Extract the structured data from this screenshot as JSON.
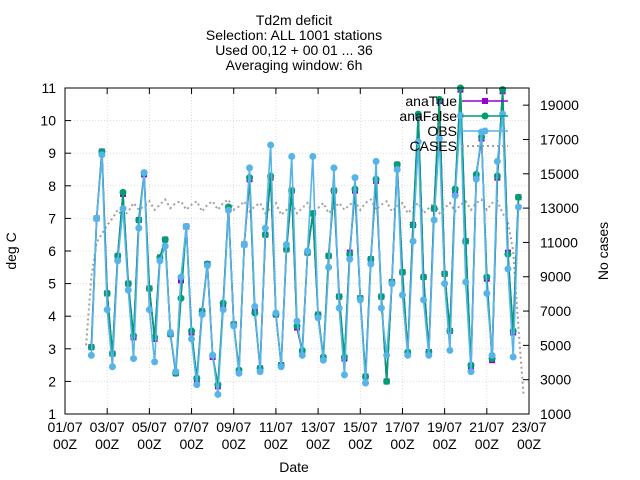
{
  "chart_data": {
    "type": "line",
    "title_lines": [
      "Td2m deficit",
      "Selection: ALL   1001 stations",
      "Used 00,12 + 00 01 ... 36",
      "Averaging window:  6h"
    ],
    "xlabel": "Date",
    "ylabel": "deg C",
    "y2label": "No cases",
    "xlim": [
      "2021-07-01 00Z",
      "2021-07-23 00Z"
    ],
    "x_ticks": [
      {
        "top": "01/07",
        "bottom": "00Z"
      },
      {
        "top": "03/07",
        "bottom": "00Z"
      },
      {
        "top": "05/07",
        "bottom": "00Z"
      },
      {
        "top": "07/07",
        "bottom": "00Z"
      },
      {
        "top": "09/07",
        "bottom": "00Z"
      },
      {
        "top": "11/07",
        "bottom": "00Z"
      },
      {
        "top": "13/07",
        "bottom": "00Z"
      },
      {
        "top": "15/07",
        "bottom": "00Z"
      },
      {
        "top": "17/07",
        "bottom": "00Z"
      },
      {
        "top": "19/07",
        "bottom": "00Z"
      },
      {
        "top": "21/07",
        "bottom": "00Z"
      },
      {
        "top": "23/07",
        "bottom": "00Z"
      }
    ],
    "ylim": [
      1,
      11
    ],
    "y_ticks": [
      "1",
      "2",
      "3",
      "4",
      "5",
      "6",
      "7",
      "8",
      "9",
      "10",
      "11"
    ],
    "y2lim": [
      1000,
      20000
    ],
    "y2_ticks": [
      "1000",
      "3000",
      "5000",
      "7000",
      "9000",
      "11000",
      "13000",
      "15000",
      "17000",
      "19000"
    ],
    "grid": true,
    "legend_position": "top-right",
    "x_days_since_start": [
      1.25,
      1.5,
      1.75,
      2.0,
      2.25,
      2.5,
      2.75,
      3.0,
      3.25,
      3.5,
      3.75,
      4.0,
      4.25,
      4.5,
      4.75,
      5.0,
      5.25,
      5.5,
      5.75,
      6.0,
      6.25,
      6.5,
      6.75,
      7.0,
      7.25,
      7.5,
      7.75,
      8.0,
      8.25,
      8.5,
      8.75,
      9.0,
      9.25,
      9.5,
      9.75,
      10.0,
      10.25,
      10.5,
      10.75,
      11.0,
      11.25,
      11.5,
      11.75,
      12.0,
      12.25,
      12.5,
      12.75,
      13.0,
      13.25,
      13.5,
      13.75,
      14.0,
      14.25,
      14.5,
      14.75,
      15.0,
      15.25,
      15.5,
      15.75,
      16.0,
      16.25,
      16.5,
      16.75,
      17.0,
      17.25,
      17.5,
      17.75,
      18.0,
      18.25,
      18.5,
      18.75,
      19.0,
      19.25,
      19.5,
      19.75,
      20.0,
      20.25,
      20.5,
      20.75,
      21.0,
      21.25,
      21.5
    ],
    "series": [
      {
        "name": "anaTrue",
        "color": "#9400d3",
        "marker": "square",
        "values": [
          3.05,
          7.0,
          9.05,
          4.7,
          2.85,
          5.85,
          7.75,
          5.0,
          3.35,
          6.95,
          8.35,
          4.85,
          3.3,
          5.8,
          6.35,
          3.45,
          2.25,
          5.1,
          6.75,
          3.5,
          2.05,
          4.15,
          5.6,
          2.75,
          1.85,
          4.35,
          7.3,
          3.75,
          2.3,
          6.2,
          8.2,
          4.15,
          2.4,
          6.5,
          8.25,
          4.05,
          2.5,
          6.05,
          7.85,
          3.65,
          2.9,
          5.95,
          7.15,
          4.05,
          2.7,
          5.85,
          7.85,
          4.6,
          2.7,
          5.95,
          7.85,
          4.55,
          2.15,
          5.75,
          8.15,
          4.6,
          2.0,
          5.05,
          8.65,
          5.35,
          2.85,
          6.8,
          10.15,
          5.2,
          2.9,
          7.3,
          10.6,
          5.3,
          3.55,
          7.85,
          10.95,
          6.3,
          2.45,
          8.3,
          9.45,
          5.15,
          2.65,
          8.25,
          10.9,
          5.95,
          3.5,
          7.65
        ]
      },
      {
        "name": "anaFalse",
        "color": "#009e73",
        "marker": "filled-circle",
        "values": [
          3.05,
          7.0,
          9.05,
          4.7,
          2.85,
          5.85,
          7.8,
          5.0,
          3.4,
          6.95,
          8.4,
          4.85,
          3.35,
          5.8,
          6.35,
          3.45,
          2.25,
          4.55,
          6.75,
          3.55,
          2.1,
          4.15,
          5.6,
          2.8,
          1.9,
          4.4,
          7.35,
          3.75,
          2.35,
          6.2,
          8.25,
          4.1,
          2.4,
          6.5,
          8.3,
          4.05,
          2.5,
          6.05,
          7.85,
          3.7,
          2.95,
          5.95,
          7.15,
          4.05,
          2.75,
          5.85,
          7.85,
          4.6,
          2.75,
          5.9,
          7.9,
          4.55,
          2.15,
          5.75,
          8.2,
          4.6,
          2.0,
          5.05,
          8.65,
          5.35,
          2.9,
          6.8,
          10.2,
          5.2,
          2.9,
          7.3,
          10.65,
          5.3,
          3.55,
          7.9,
          11.0,
          6.3,
          2.5,
          8.35,
          9.5,
          5.2,
          2.7,
          8.3,
          10.95,
          5.9,
          3.55,
          7.65
        ]
      },
      {
        "name": "OBS",
        "color": "#56b4e9",
        "marker": "filled-circle",
        "values": [
          2.8,
          7.0,
          8.95,
          4.2,
          2.45,
          5.7,
          7.3,
          4.8,
          2.7,
          6.7,
          8.4,
          4.2,
          2.6,
          5.7,
          6.15,
          3.5,
          2.3,
          5.2,
          6.75,
          3.3,
          1.9,
          4.05,
          5.55,
          2.8,
          1.6,
          4.2,
          7.25,
          3.7,
          2.25,
          6.2,
          8.55,
          4.3,
          2.3,
          6.7,
          9.25,
          4.1,
          2.45,
          6.2,
          8.9,
          3.85,
          2.8,
          6.0,
          8.9,
          3.95,
          2.65,
          5.5,
          8.55,
          4.25,
          2.2,
          5.75,
          8.25,
          4.5,
          1.95,
          5.6,
          8.75,
          4.25,
          2.8,
          5.0,
          8.5,
          4.65,
          2.8,
          6.3,
          9.35,
          4.5,
          2.8,
          6.95,
          9.45,
          5.0,
          2.95,
          7.7,
          10.15,
          5.05,
          2.3,
          8.2,
          9.65,
          4.7,
          2.8,
          8.75,
          10.2,
          5.45,
          2.75,
          7.35
        ]
      }
    ],
    "cases": {
      "name": "CASES",
      "color": "#a0a0a0",
      "style": "dotted",
      "x_days_since_start": [
        1.0,
        1.25,
        1.5,
        1.75,
        2.0,
        2.25,
        2.5,
        2.75,
        3.0,
        3.25,
        3.5,
        3.75,
        4.0,
        4.25,
        4.5,
        4.75,
        5.0,
        5.25,
        5.5,
        5.75,
        6.0,
        6.25,
        6.5,
        6.75,
        7.0,
        7.25,
        7.5,
        7.75,
        8.0,
        8.25,
        8.5,
        8.75,
        9.0,
        9.25,
        9.5,
        9.75,
        10.0,
        10.25,
        10.5,
        10.75,
        11.0,
        11.25,
        11.5,
        11.75,
        12.0,
        12.25,
        12.5,
        12.75,
        13.0,
        13.25,
        13.5,
        13.75,
        14.0,
        14.25,
        14.5,
        14.75,
        15.0,
        15.25,
        15.5,
        15.75,
        16.0,
        16.25,
        16.5,
        16.75,
        17.0,
        17.25,
        17.5,
        17.75,
        18.0,
        18.25,
        18.5,
        18.75,
        19.0,
        19.25,
        19.5,
        19.75,
        20.0,
        20.25,
        20.5,
        20.75,
        21.0,
        21.25,
        21.5,
        21.75
      ],
      "values": [
        5000,
        9000,
        11000,
        11500,
        12000,
        12400,
        12900,
        12500,
        12800,
        13300,
        12900,
        13100,
        13400,
        12900,
        13200,
        13500,
        13000,
        13300,
        13400,
        12900,
        13200,
        13400,
        12800,
        13200,
        13400,
        12900,
        13300,
        13500,
        12900,
        13100,
        13400,
        12800,
        13100,
        13300,
        12700,
        13000,
        13300,
        12600,
        12900,
        13300,
        12700,
        13000,
        13300,
        12700,
        13000,
        13300,
        12700,
        13000,
        13300,
        12900,
        13200,
        13400,
        12900,
        13300,
        13500,
        12900,
        13200,
        13400,
        12800,
        13100,
        13300,
        12700,
        13000,
        13300,
        12700,
        13000,
        13300,
        12700,
        13000,
        13300,
        12800,
        13200,
        13400,
        12900,
        13300,
        13500,
        12900,
        13300,
        13400,
        12700,
        12200,
        10500,
        6000,
        2000
      ]
    }
  }
}
